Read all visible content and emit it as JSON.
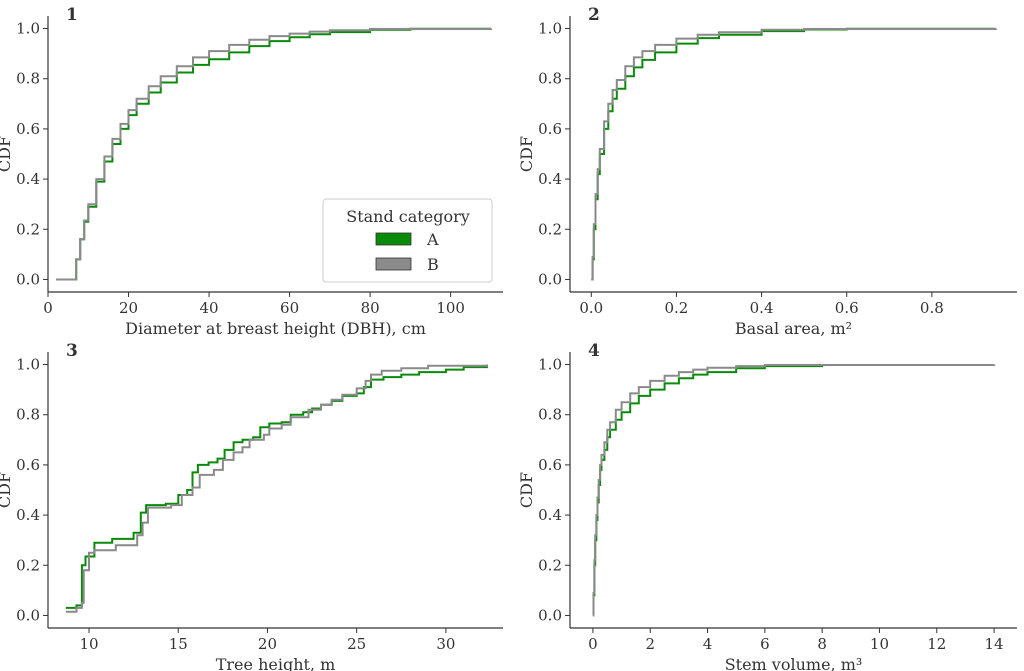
{
  "figure": {
    "legend": {
      "title": "Stand category",
      "entries": [
        {
          "label": "A",
          "color": "#0a8a0a"
        },
        {
          "label": "B",
          "color": "#8a8a8a"
        }
      ],
      "placement": "lower-right of panel 1"
    }
  },
  "chart_data": [
    {
      "type": "line",
      "panel_label": "1",
      "xlabel": "Diameter at breast height (DBH), cm",
      "ylabel": "CDF",
      "xlim": [
        0,
        113
      ],
      "ylim": [
        -0.05,
        1.05
      ],
      "xticks": [
        0,
        20,
        40,
        60,
        80,
        100
      ],
      "yticks": [
        0.0,
        0.2,
        0.4,
        0.6,
        0.8,
        1.0
      ],
      "step": true,
      "grid": false,
      "series": [
        {
          "name": "A",
          "color": "#0a8a0a",
          "points": [
            [
              2,
              0
            ],
            [
              6,
              0
            ],
            [
              7,
              0.08
            ],
            [
              8,
              0.16
            ],
            [
              9,
              0.23
            ],
            [
              10,
              0.29
            ],
            [
              12,
              0.39
            ],
            [
              14,
              0.47
            ],
            [
              16,
              0.54
            ],
            [
              18,
              0.6
            ],
            [
              20,
              0.655
            ],
            [
              22,
              0.7
            ],
            [
              25,
              0.745
            ],
            [
              28,
              0.785
            ],
            [
              32,
              0.825
            ],
            [
              36,
              0.855
            ],
            [
              40,
              0.878
            ],
            [
              45,
              0.905
            ],
            [
              50,
              0.93
            ],
            [
              55,
              0.95
            ],
            [
              60,
              0.965
            ],
            [
              65,
              0.977
            ],
            [
              70,
              0.986
            ],
            [
              80,
              0.995
            ],
            [
              90,
              0.999
            ],
            [
              110,
              1.0
            ]
          ]
        },
        {
          "name": "B",
          "color": "#8a8a8a",
          "points": [
            [
              2,
              0
            ],
            [
              6,
              0
            ],
            [
              7,
              0.08
            ],
            [
              8,
              0.16
            ],
            [
              9,
              0.235
            ],
            [
              10,
              0.3
            ],
            [
              12,
              0.4
            ],
            [
              14,
              0.49
            ],
            [
              16,
              0.56
            ],
            [
              18,
              0.62
            ],
            [
              20,
              0.675
            ],
            [
              22,
              0.72
            ],
            [
              25,
              0.77
            ],
            [
              28,
              0.81
            ],
            [
              32,
              0.85
            ],
            [
              36,
              0.885
            ],
            [
              40,
              0.91
            ],
            [
              45,
              0.935
            ],
            [
              50,
              0.955
            ],
            [
              55,
              0.97
            ],
            [
              60,
              0.98
            ],
            [
              65,
              0.988
            ],
            [
              70,
              0.993
            ],
            [
              80,
              0.998
            ],
            [
              110,
              1.0
            ]
          ]
        }
      ]
    },
    {
      "type": "line",
      "panel_label": "2",
      "xlabel": "Basal area, m²",
      "ylabel": "CDF",
      "xlim": [
        -0.05,
        1.0
      ],
      "ylim": [
        -0.05,
        1.05
      ],
      "xticks": [
        0.0,
        0.2,
        0.4,
        0.6,
        0.8
      ],
      "yticks": [
        0.0,
        0.2,
        0.4,
        0.6,
        0.8,
        1.0
      ],
      "step": true,
      "grid": false,
      "series": [
        {
          "name": "A",
          "color": "#0a8a0a",
          "points": [
            [
              0,
              0
            ],
            [
              0.003,
              0.08
            ],
            [
              0.006,
              0.2
            ],
            [
              0.01,
              0.32
            ],
            [
              0.015,
              0.42
            ],
            [
              0.02,
              0.5
            ],
            [
              0.03,
              0.6
            ],
            [
              0.04,
              0.67
            ],
            [
              0.05,
              0.72
            ],
            [
              0.06,
              0.76
            ],
            [
              0.08,
              0.81
            ],
            [
              0.1,
              0.845
            ],
            [
              0.12,
              0.875
            ],
            [
              0.15,
              0.905
            ],
            [
              0.2,
              0.94
            ],
            [
              0.25,
              0.962
            ],
            [
              0.3,
              0.975
            ],
            [
              0.4,
              0.99
            ],
            [
              0.5,
              0.996
            ],
            [
              0.6,
              0.999
            ],
            [
              0.95,
              1.0
            ]
          ]
        },
        {
          "name": "B",
          "color": "#8a8a8a",
          "points": [
            [
              0,
              0
            ],
            [
              0.003,
              0.09
            ],
            [
              0.006,
              0.22
            ],
            [
              0.01,
              0.34
            ],
            [
              0.015,
              0.44
            ],
            [
              0.02,
              0.52
            ],
            [
              0.03,
              0.63
            ],
            [
              0.04,
              0.7
            ],
            [
              0.05,
              0.755
            ],
            [
              0.06,
              0.795
            ],
            [
              0.08,
              0.85
            ],
            [
              0.1,
              0.885
            ],
            [
              0.12,
              0.91
            ],
            [
              0.15,
              0.935
            ],
            [
              0.2,
              0.96
            ],
            [
              0.25,
              0.975
            ],
            [
              0.3,
              0.985
            ],
            [
              0.4,
              0.995
            ],
            [
              0.5,
              0.998
            ],
            [
              0.95,
              1.0
            ]
          ]
        }
      ]
    },
    {
      "type": "line",
      "panel_label": "3",
      "xlabel": "Tree height, m",
      "ylabel": "CDF",
      "xlim": [
        7.7,
        33.2
      ],
      "ylim": [
        -0.05,
        1.05
      ],
      "xticks": [
        10,
        15,
        20,
        25,
        30
      ],
      "yticks": [
        0.0,
        0.2,
        0.4,
        0.6,
        0.8,
        1.0
      ],
      "step": true,
      "grid": false,
      "series": [
        {
          "name": "A",
          "color": "#0a8a0a",
          "points": [
            [
              8.7,
              0.03
            ],
            [
              9.3,
              0.04
            ],
            [
              9.6,
              0.2
            ],
            [
              9.8,
              0.235
            ],
            [
              10.3,
              0.29
            ],
            [
              11.3,
              0.305
            ],
            [
              12.5,
              0.33
            ],
            [
              12.9,
              0.41
            ],
            [
              13.2,
              0.44
            ],
            [
              14.3,
              0.445
            ],
            [
              15.0,
              0.48
            ],
            [
              15.5,
              0.5
            ],
            [
              15.8,
              0.57
            ],
            [
              16.1,
              0.6
            ],
            [
              16.7,
              0.61
            ],
            [
              17.2,
              0.625
            ],
            [
              17.6,
              0.66
            ],
            [
              18.1,
              0.69
            ],
            [
              18.6,
              0.7
            ],
            [
              19.2,
              0.71
            ],
            [
              19.6,
              0.75
            ],
            [
              20.1,
              0.765
            ],
            [
              20.8,
              0.77
            ],
            [
              21.3,
              0.8
            ],
            [
              22.0,
              0.81
            ],
            [
              22.5,
              0.825
            ],
            [
              23.0,
              0.84
            ],
            [
              23.6,
              0.855
            ],
            [
              24.2,
              0.875
            ],
            [
              25.0,
              0.885
            ],
            [
              25.4,
              0.91
            ],
            [
              25.8,
              0.94
            ],
            [
              26.5,
              0.95
            ],
            [
              27.5,
              0.96
            ],
            [
              28.5,
              0.97
            ],
            [
              30.0,
              0.98
            ],
            [
              31.0,
              0.99
            ],
            [
              32.3,
              1.0
            ]
          ]
        },
        {
          "name": "B",
          "color": "#8a8a8a",
          "points": [
            [
              8.7,
              0.015
            ],
            [
              9.3,
              0.03
            ],
            [
              9.6,
              0.05
            ],
            [
              9.7,
              0.18
            ],
            [
              10.0,
              0.25
            ],
            [
              10.3,
              0.26
            ],
            [
              11.5,
              0.28
            ],
            [
              12.7,
              0.32
            ],
            [
              13.0,
              0.37
            ],
            [
              13.3,
              0.43
            ],
            [
              14.6,
              0.44
            ],
            [
              15.2,
              0.48
            ],
            [
              15.8,
              0.51
            ],
            [
              16.2,
              0.56
            ],
            [
              17.0,
              0.58
            ],
            [
              17.5,
              0.62
            ],
            [
              18.1,
              0.65
            ],
            [
              18.6,
              0.67
            ],
            [
              19.0,
              0.7
            ],
            [
              19.8,
              0.72
            ],
            [
              20.1,
              0.745
            ],
            [
              20.8,
              0.76
            ],
            [
              21.3,
              0.79
            ],
            [
              22.3,
              0.82
            ],
            [
              23.0,
              0.84
            ],
            [
              23.6,
              0.86
            ],
            [
              24.2,
              0.88
            ],
            [
              25.0,
              0.905
            ],
            [
              25.5,
              0.935
            ],
            [
              25.8,
              0.96
            ],
            [
              26.4,
              0.975
            ],
            [
              27.5,
              0.985
            ],
            [
              29.0,
              0.995
            ],
            [
              32.3,
              1.0
            ]
          ]
        }
      ]
    },
    {
      "type": "line",
      "panel_label": "4",
      "xlabel": "Stem volume, m³",
      "ylabel": "CDF",
      "xlim": [
        -0.8,
        14.8
      ],
      "ylim": [
        -0.05,
        1.05
      ],
      "xticks": [
        0,
        2,
        4,
        6,
        8,
        10,
        12,
        14
      ],
      "yticks": [
        0.0,
        0.2,
        0.4,
        0.6,
        0.8,
        1.0
      ],
      "step": true,
      "grid": false,
      "series": [
        {
          "name": "A",
          "color": "#0a8a0a",
          "points": [
            [
              0.0,
              0.0
            ],
            [
              0.02,
              0.08
            ],
            [
              0.05,
              0.2
            ],
            [
              0.08,
              0.3
            ],
            [
              0.12,
              0.38
            ],
            [
              0.16,
              0.45
            ],
            [
              0.2,
              0.52
            ],
            [
              0.25,
              0.58
            ],
            [
              0.3,
              0.62
            ],
            [
              0.4,
              0.66
            ],
            [
              0.5,
              0.71
            ],
            [
              0.6,
              0.74
            ],
            [
              0.8,
              0.78
            ],
            [
              1.0,
              0.81
            ],
            [
              1.3,
              0.845
            ],
            [
              1.6,
              0.875
            ],
            [
              2.0,
              0.9
            ],
            [
              2.5,
              0.925
            ],
            [
              3.0,
              0.945
            ],
            [
              3.5,
              0.96
            ],
            [
              4.0,
              0.97
            ],
            [
              5.0,
              0.985
            ],
            [
              6.0,
              0.994
            ],
            [
              8.0,
              0.998
            ],
            [
              14.0,
              1.0
            ]
          ]
        },
        {
          "name": "B",
          "color": "#8a8a8a",
          "points": [
            [
              0.0,
              0.0
            ],
            [
              0.02,
              0.09
            ],
            [
              0.05,
              0.22
            ],
            [
              0.08,
              0.32
            ],
            [
              0.12,
              0.4
            ],
            [
              0.16,
              0.47
            ],
            [
              0.2,
              0.54
            ],
            [
              0.25,
              0.6
            ],
            [
              0.3,
              0.64
            ],
            [
              0.4,
              0.69
            ],
            [
              0.5,
              0.74
            ],
            [
              0.6,
              0.77
            ],
            [
              0.8,
              0.82
            ],
            [
              1.0,
              0.85
            ],
            [
              1.3,
              0.885
            ],
            [
              1.6,
              0.91
            ],
            [
              2.0,
              0.935
            ],
            [
              2.5,
              0.955
            ],
            [
              3.0,
              0.97
            ],
            [
              3.5,
              0.98
            ],
            [
              4.0,
              0.987
            ],
            [
              5.0,
              0.994
            ],
            [
              6.0,
              0.998
            ],
            [
              14.0,
              1.0
            ]
          ]
        }
      ]
    }
  ]
}
